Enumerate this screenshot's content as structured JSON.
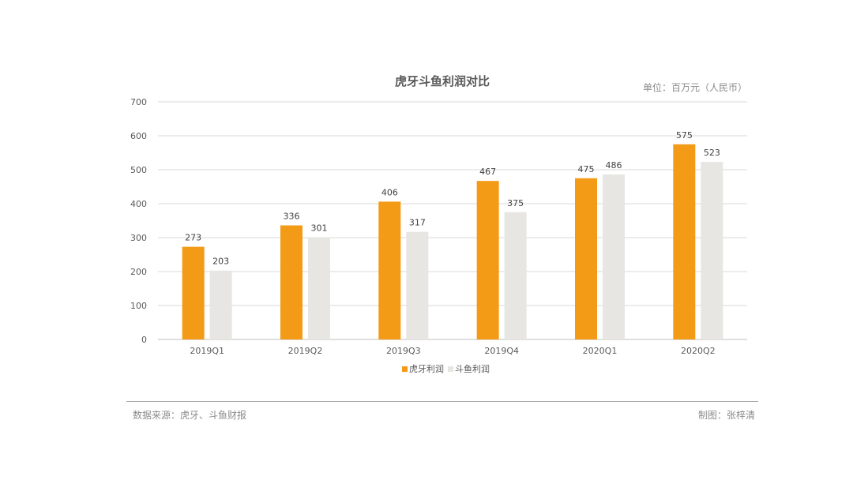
{
  "chart_data": {
    "type": "bar",
    "title": "虎牙斗鱼利润对比",
    "unit": "单位：百万元（人民币）",
    "categories": [
      "2019Q1",
      "2019Q2",
      "2019Q3",
      "2019Q4",
      "2020Q1",
      "2020Q2"
    ],
    "series": [
      {
        "name": "虎牙利润",
        "color": "#f39b17",
        "values": [
          273,
          336,
          406,
          467,
          475,
          575
        ]
      },
      {
        "name": "斗鱼利润",
        "color": "#e8e6e3",
        "values": [
          203,
          301,
          317,
          375,
          486,
          523
        ]
      }
    ],
    "ylim": [
      0,
      700
    ],
    "yticks": [
      0,
      100,
      200,
      300,
      400,
      500,
      600,
      700
    ],
    "grid": true,
    "legend": "bottom-center",
    "data_labels": true
  },
  "footer": {
    "source": "数据来源：虎牙、斗鱼财报",
    "credit": "制图：张梓清"
  }
}
